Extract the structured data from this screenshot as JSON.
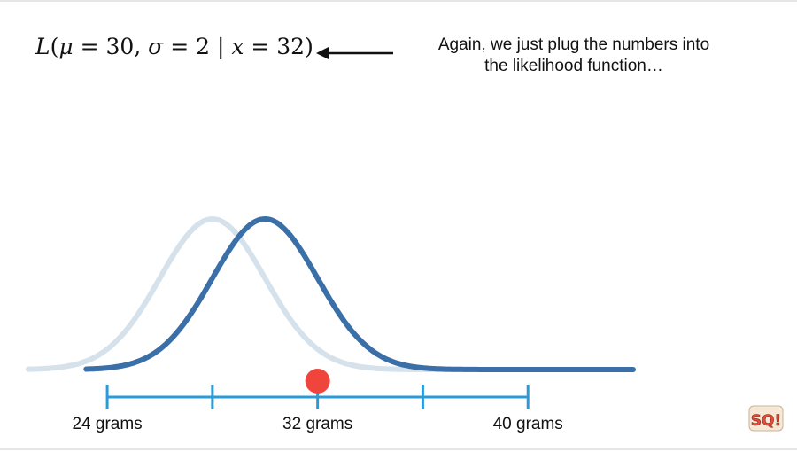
{
  "formula": {
    "L": "L",
    "open": "(",
    "mu": "μ",
    "eq1": " = 30, ",
    "sigma": "σ",
    "eq2": " = 2 | ",
    "x": "x",
    "eq3": " = 32)"
  },
  "note": {
    "line1": "Again, we just plug the numbers into",
    "line2": "the likelihood function…"
  },
  "colors": {
    "prior_curve": "#d5e1eb",
    "current_curve": "#3a6fa8",
    "axis": "#2d9ad8",
    "point": "#f0453c"
  },
  "chart_data": {
    "type": "line",
    "xlim": [
      21,
      44
    ],
    "ticks": [
      24,
      28,
      32,
      36,
      40
    ],
    "tick_labels": [
      {
        "value": 24,
        "label": "24 grams"
      },
      {
        "value": 32,
        "label": "32 grams"
      },
      {
        "value": 40,
        "label": "40 grams"
      }
    ],
    "curves": [
      {
        "mu": 28,
        "sigma": 2
      },
      {
        "mu": 30,
        "sigma": 2
      }
    ],
    "point": {
      "x": 32
    },
    "grid": false
  },
  "logo": {
    "text": "SQ!",
    "icon": "statquest-logo-icon"
  }
}
